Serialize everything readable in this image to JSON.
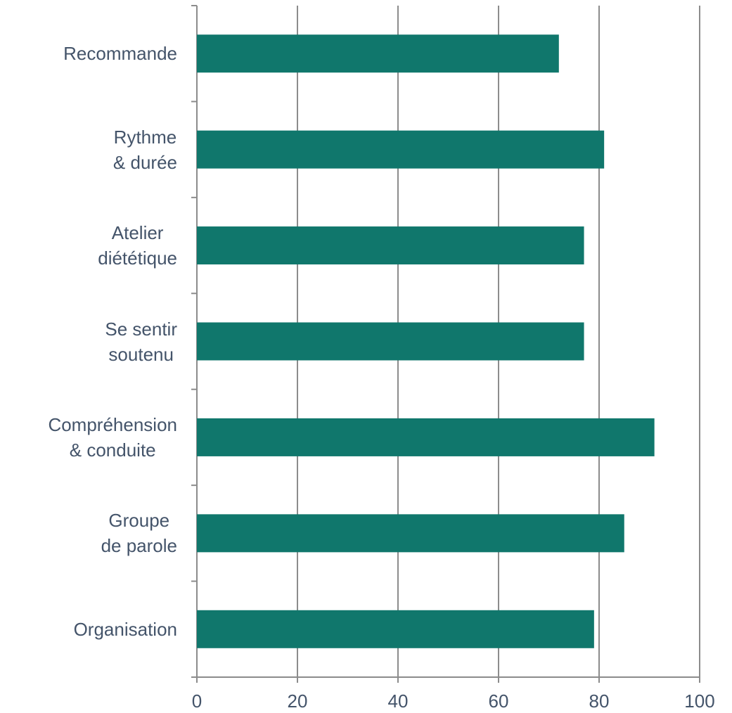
{
  "chart_data": {
    "type": "barh",
    "categories": [
      "Recommande",
      "Rythme\n& durée",
      "Atelier\ndiététique",
      "Se sentir\nsoutenu",
      "Compréhension\n& conduite",
      "Groupe\nde parole",
      "Organisation"
    ],
    "values": [
      72,
      81,
      77,
      77,
      91,
      85,
      79
    ],
    "color": "#10776c",
    "xlim": [
      0,
      100
    ],
    "xticks": [
      0,
      20,
      40,
      60,
      80,
      100
    ],
    "grid": true
  }
}
